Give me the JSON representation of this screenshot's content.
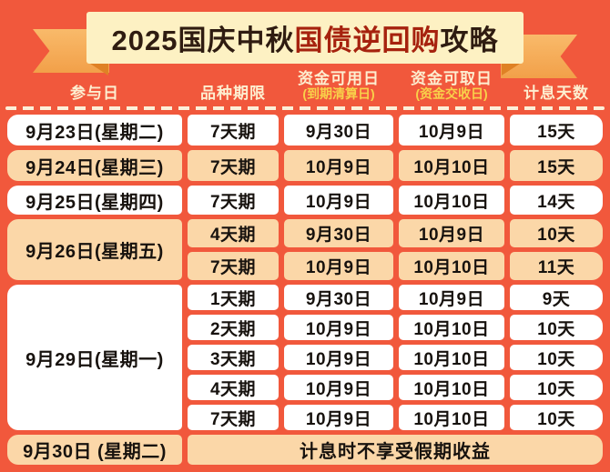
{
  "colors": {
    "background_red": "#f1583c",
    "banner_cream": "#fdf1c3",
    "ribbon_orange": "#f5a84f",
    "ribbon_fold": "#df8125",
    "row_white": "#ffffff",
    "row_peach": "#fbd7a8",
    "header_text_cream": "#fdeed0",
    "header_text_yellow": "#f8d14a",
    "title_dark": "#2f1c11",
    "title_red": "#a6220e",
    "cell_text": "#17120e"
  },
  "banner": {
    "title_parts": [
      {
        "text": "2025国庆中秋",
        "color": "#2f1c11"
      },
      {
        "text": "国债逆回购",
        "color": "#a6220e"
      },
      {
        "text": "攻略",
        "color": "#2f1c11"
      }
    ]
  },
  "table": {
    "columns": [
      {
        "main": "参与日",
        "sub": ""
      },
      {
        "main": "品种期限",
        "sub": ""
      },
      {
        "main": "资金可用日",
        "sub": "(到期清算日)"
      },
      {
        "main": "资金可取日",
        "sub": "(资金交收日)"
      },
      {
        "main": "计息天数",
        "sub": ""
      }
    ],
    "groups": [
      {
        "date": "9月23日(星期二)",
        "bg": "white",
        "rows": [
          {
            "term": "7天期",
            "available": "9月30日",
            "withdraw": "10月9日",
            "days": "15天"
          }
        ]
      },
      {
        "date": "9月24日(星期三)",
        "bg": "peach",
        "rows": [
          {
            "term": "7天期",
            "available": "10月9日",
            "withdraw": "10月10日",
            "days": "15天"
          }
        ]
      },
      {
        "date": "9月25日(星期四)",
        "bg": "white",
        "rows": [
          {
            "term": "7天期",
            "available": "10月9日",
            "withdraw": "10月10日",
            "days": "14天"
          }
        ]
      },
      {
        "date": "9月26日(星期五)",
        "bg": "peach",
        "rows": [
          {
            "term": "4天期",
            "available": "9月30日",
            "withdraw": "10月9日",
            "days": "10天"
          },
          {
            "term": "7天期",
            "available": "10月9日",
            "withdraw": "10月10日",
            "days": "11天"
          }
        ]
      },
      {
        "date": "9月29日(星期一)",
        "bg": "white",
        "rows": [
          {
            "term": "1天期",
            "available": "9月30日",
            "withdraw": "10月9日",
            "days": "9天"
          },
          {
            "term": "2天期",
            "available": "10月9日",
            "withdraw": "10月10日",
            "days": "10天"
          },
          {
            "term": "3天期",
            "available": "10月9日",
            "withdraw": "10月10日",
            "days": "10天"
          },
          {
            "term": "4天期",
            "available": "10月9日",
            "withdraw": "10月10日",
            "days": "10天"
          },
          {
            "term": "7天期",
            "available": "10月9日",
            "withdraw": "10月10日",
            "days": "10天"
          }
        ]
      }
    ],
    "footer_row": {
      "date": "9月30日 (星期二)",
      "note": "计息时不享受假期收益",
      "bg": "peach"
    }
  },
  "chart_data": {
    "type": "table",
    "title": "2025国庆中秋国债逆回购攻略",
    "columns": [
      "参与日",
      "品种期限",
      "资金可用日(到期清算日)",
      "资金可取日(资金交收日)",
      "计息天数"
    ],
    "rows": [
      [
        "9月23日(星期二)",
        "7天期",
        "9月30日",
        "10月9日",
        "15天"
      ],
      [
        "9月24日(星期三)",
        "7天期",
        "10月9日",
        "10月10日",
        "15天"
      ],
      [
        "9月25日(星期四)",
        "7天期",
        "10月9日",
        "10月10日",
        "14天"
      ],
      [
        "9月26日(星期五)",
        "4天期",
        "9月30日",
        "10月9日",
        "10天"
      ],
      [
        "9月26日(星期五)",
        "7天期",
        "10月9日",
        "10月10日",
        "11天"
      ],
      [
        "9月29日(星期一)",
        "1天期",
        "9月30日",
        "10月9日",
        "9天"
      ],
      [
        "9月29日(星期一)",
        "2天期",
        "10月9日",
        "10月10日",
        "10天"
      ],
      [
        "9月29日(星期一)",
        "3天期",
        "10月9日",
        "10月10日",
        "10天"
      ],
      [
        "9月29日(星期一)",
        "4天期",
        "10月9日",
        "10月10日",
        "10天"
      ],
      [
        "9月29日(星期一)",
        "7天期",
        "10月9日",
        "10月10日",
        "10天"
      ],
      [
        "9月30日 (星期二)",
        "计息时不享受假期收益",
        "",
        "",
        ""
      ]
    ],
    "layout": {
      "merged_first_column_groups": true,
      "row_band_colors": [
        "white",
        "peach"
      ]
    }
  }
}
